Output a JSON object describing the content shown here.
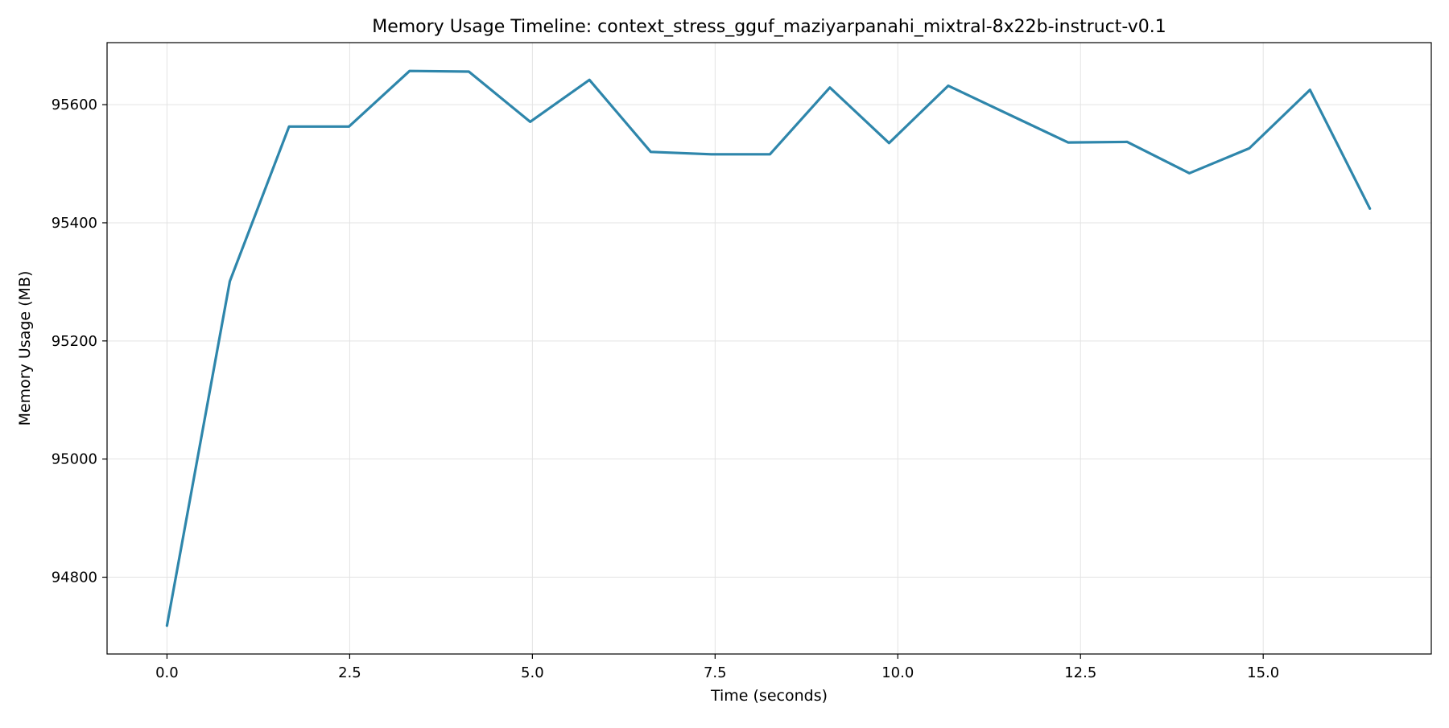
{
  "chart_data": {
    "type": "line",
    "title": "Memory Usage Timeline: context_stress_gguf_maziyarpanahi_mixtral-8x22b-instruct-v0.1",
    "xlabel": "Time (seconds)",
    "ylabel": "Memory Usage (MB)",
    "xlim": [
      -0.82,
      17.3
    ],
    "ylim": [
      94670,
      95705
    ],
    "xticks": [
      0.0,
      2.5,
      5.0,
      7.5,
      10.0,
      12.5,
      15.0
    ],
    "xtick_labels": [
      "0.0",
      "2.5",
      "5.0",
      "7.5",
      "10.0",
      "12.5",
      "15.0"
    ],
    "yticks": [
      94800,
      95000,
      95200,
      95400,
      95600
    ],
    "ytick_labels": [
      "94800",
      "95000",
      "95200",
      "95400",
      "95600"
    ],
    "grid": true,
    "line_color": "#2e86ab",
    "series": [
      {
        "x": [
          0.0,
          0.86,
          1.67,
          2.49,
          3.32,
          4.13,
          4.97,
          5.78,
          6.62,
          7.45,
          8.25,
          9.07,
          9.88,
          10.69,
          12.33,
          13.14,
          13.99,
          14.81,
          15.64,
          16.46
        ],
        "y": [
          94718,
          95301,
          95563,
          95563,
          95657,
          95656,
          95571,
          95642,
          95520,
          95516,
          95516,
          95629,
          95535,
          95632,
          95536,
          95537,
          95484,
          95526,
          95625,
          95424
        ]
      }
    ]
  }
}
